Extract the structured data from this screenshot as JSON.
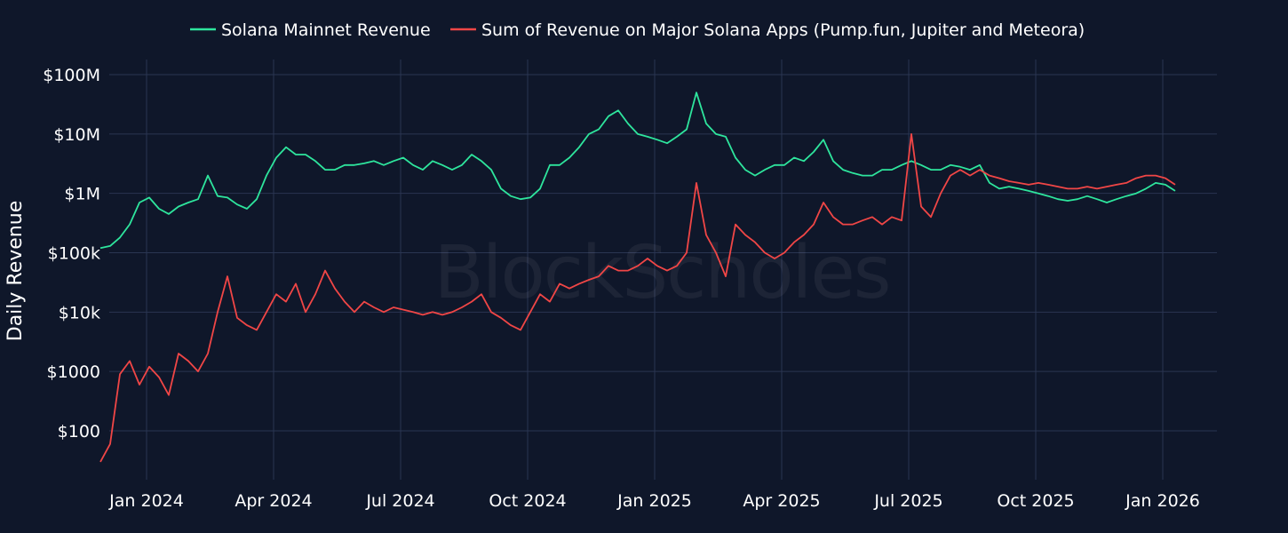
{
  "chart_data": {
    "type": "line",
    "title": "",
    "xlabel": "",
    "ylabel": "Daily Revenue",
    "yscale": "log",
    "ylim": [
      15,
      180000000
    ],
    "grid": true,
    "legend_position": "top-center",
    "watermark": "BlockScholes",
    "x_ticks": [
      "Jan 2024",
      "Apr 2024",
      "Jul 2024",
      "Oct 2024",
      "Jan 2025",
      "Apr 2025",
      "Jul 2025",
      "Oct 2025",
      "Jan 2026"
    ],
    "y_ticks": [
      {
        "value": 100,
        "label": "$100"
      },
      {
        "value": 1000,
        "label": "$1000"
      },
      {
        "value": 10000,
        "label": "$10k"
      },
      {
        "value": 100000,
        "label": "$100k"
      },
      {
        "value": 1000000,
        "label": "$1M"
      },
      {
        "value": 10000000,
        "label": "$10M"
      },
      {
        "value": 100000000,
        "label": "$100M"
      }
    ],
    "x_start": "2023-12-01",
    "x_step": "week",
    "series": [
      {
        "name": "Solana Mainnet Revenue",
        "color": "#2ee59d",
        "values": [
          120000,
          130000,
          180000,
          300000,
          700000,
          850000,
          550000,
          450000,
          600000,
          700000,
          800000,
          2000000,
          900000,
          850000,
          650000,
          550000,
          800000,
          2000000,
          4000000,
          6000000,
          4500000,
          4500000,
          3500000,
          2500000,
          2500000,
          3000000,
          3000000,
          3200000,
          3500000,
          3000000,
          3500000,
          4000000,
          3000000,
          2500000,
          3500000,
          3000000,
          2500000,
          3000000,
          4500000,
          3500000,
          2500000,
          1200000,
          900000,
          800000,
          850000,
          1200000,
          3000000,
          3000000,
          4000000,
          6000000,
          10000000,
          12000000,
          20000000,
          25000000,
          15000000,
          10000000,
          9000000,
          8000000,
          7000000,
          9000000,
          12000000,
          50000000,
          15000000,
          10000000,
          9000000,
          4000000,
          2500000,
          2000000,
          2500000,
          3000000,
          3000000,
          4000000,
          3500000,
          5000000,
          8000000,
          3500000,
          2500000,
          2200000,
          2000000,
          2000000,
          2500000,
          2500000,
          3000000,
          3500000,
          3000000,
          2500000,
          2500000,
          3000000,
          2800000,
          2500000,
          3000000,
          1500000,
          1200000,
          1300000,
          1200000,
          1100000,
          1000000,
          900000,
          800000,
          750000,
          800000,
          900000,
          800000,
          700000,
          800000,
          900000,
          1000000,
          1200000,
          1500000,
          1400000,
          1100000
        ]
      },
      {
        "name": "Sum of Revenue on Major Solana Apps (Pump.fun, Jupiter and Meteora)",
        "color": "#f04646",
        "values": [
          30,
          60,
          900,
          1500,
          600,
          1200,
          800,
          400,
          2000,
          1500,
          1000,
          2000,
          10000,
          40000,
          8000,
          6000,
          5000,
          10000,
          20000,
          15000,
          30000,
          10000,
          20000,
          50000,
          25000,
          15000,
          10000,
          15000,
          12000,
          10000,
          12000,
          11000,
          10000,
          9000,
          10000,
          9000,
          10000,
          12000,
          15000,
          20000,
          10000,
          8000,
          6000,
          5000,
          10000,
          20000,
          15000,
          30000,
          25000,
          30000,
          35000,
          40000,
          60000,
          50000,
          50000,
          60000,
          80000,
          60000,
          50000,
          60000,
          100000,
          1500000,
          200000,
          100000,
          40000,
          300000,
          200000,
          150000,
          100000,
          80000,
          100000,
          150000,
          200000,
          300000,
          700000,
          400000,
          300000,
          300000,
          350000,
          400000,
          300000,
          400000,
          350000,
          10000000,
          600000,
          400000,
          1000000,
          2000000,
          2500000,
          2000000,
          2500000,
          2000000,
          1800000,
          1600000,
          1500000,
          1400000,
          1500000,
          1400000,
          1300000,
          1200000,
          1200000,
          1300000,
          1200000,
          1300000,
          1400000,
          1500000,
          1800000,
          2000000,
          2000000,
          1800000,
          1400000
        ]
      }
    ]
  }
}
